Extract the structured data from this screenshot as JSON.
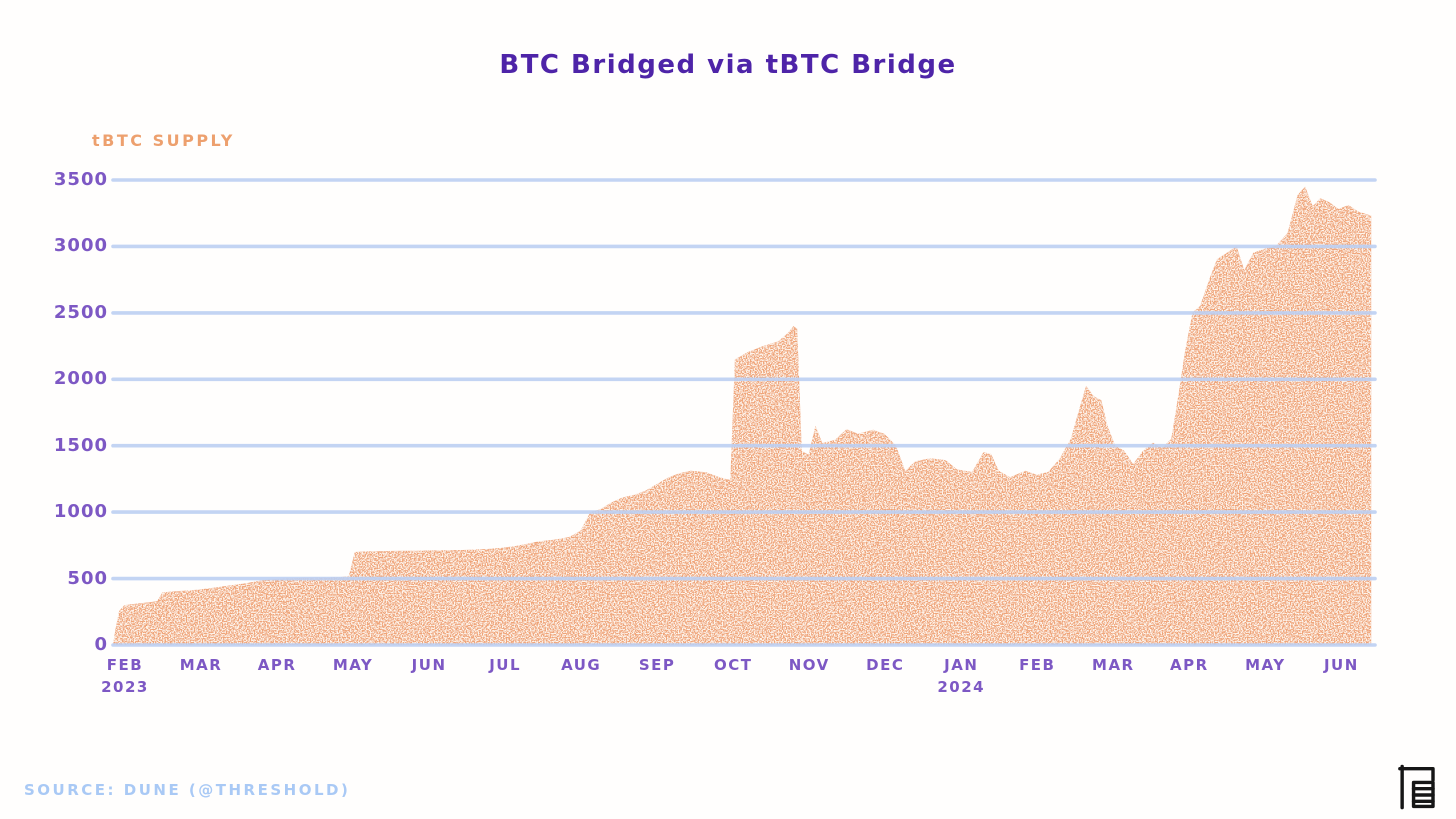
{
  "page": {
    "source": "SOURCE: DUNE (@THRESHOLD)"
  },
  "chart_data": {
    "type": "area",
    "title": "BTC Bridged via tBTC Bridge",
    "ylabel": "tBTC SUPPLY",
    "xlabel": "",
    "series_name": "tBTC Supply",
    "ylim": [
      0,
      3500
    ],
    "yticks": [
      0,
      500,
      1000,
      1500,
      2000,
      2500,
      3000,
      3500
    ],
    "x_range": [
      0,
      16.6
    ],
    "grid": "horizontal",
    "legend": "none",
    "x_ticks": [
      {
        "pos": 0,
        "label": "FEB",
        "sub": "2023"
      },
      {
        "pos": 1,
        "label": "MAR"
      },
      {
        "pos": 2,
        "label": "APR"
      },
      {
        "pos": 3,
        "label": "MAY"
      },
      {
        "pos": 4,
        "label": "JUN"
      },
      {
        "pos": 5,
        "label": "JUL"
      },
      {
        "pos": 6,
        "label": "AUG"
      },
      {
        "pos": 7,
        "label": "SEP"
      },
      {
        "pos": 8,
        "label": "OCT"
      },
      {
        "pos": 9,
        "label": "NOV"
      },
      {
        "pos": 10,
        "label": "DEC"
      },
      {
        "pos": 11,
        "label": "JAN",
        "sub": "2024"
      },
      {
        "pos": 12,
        "label": "FEB"
      },
      {
        "pos": 13,
        "label": "MAR"
      },
      {
        "pos": 14,
        "label": "APR"
      },
      {
        "pos": 15,
        "label": "MAY"
      },
      {
        "pos": 16,
        "label": "JUN"
      }
    ],
    "x": [
      0.0,
      0.03,
      0.08,
      0.15,
      0.3,
      0.45,
      0.58,
      0.65,
      0.8,
      1.0,
      1.25,
      1.5,
      1.75,
      2.0,
      2.2,
      2.5,
      2.8,
      3.0,
      3.1,
      3.18,
      3.4,
      3.7,
      4.0,
      4.3,
      4.6,
      4.9,
      5.1,
      5.3,
      5.45,
      5.6,
      5.8,
      6.0,
      6.15,
      6.28,
      6.4,
      6.55,
      6.7,
      6.85,
      7.0,
      7.15,
      7.3,
      7.45,
      7.6,
      7.8,
      7.95,
      8.05,
      8.12,
      8.18,
      8.35,
      8.55,
      8.75,
      8.88,
      8.95,
      9.0,
      9.06,
      9.15,
      9.24,
      9.33,
      9.5,
      9.65,
      9.8,
      10.0,
      10.15,
      10.3,
      10.42,
      10.55,
      10.75,
      10.95,
      11.1,
      11.3,
      11.45,
      11.55,
      11.65,
      11.8,
      12.0,
      12.15,
      12.3,
      12.45,
      12.6,
      12.7,
      12.8,
      12.9,
      13.0,
      13.08,
      13.18,
      13.3,
      13.42,
      13.55,
      13.68,
      13.8,
      13.92,
      14.02,
      14.1,
      14.2,
      14.3,
      14.42,
      14.52,
      14.65,
      14.78,
      14.88,
      15.0,
      15.15,
      15.3,
      15.45,
      15.58,
      15.68,
      15.78,
      15.88,
      16.0,
      16.12,
      16.25,
      16.38,
      16.55
    ],
    "values": [
      0,
      110,
      255,
      300,
      310,
      320,
      330,
      395,
      405,
      410,
      425,
      445,
      465,
      490,
      500,
      505,
      508,
      512,
      516,
      700,
      705,
      708,
      710,
      712,
      715,
      722,
      730,
      745,
      762,
      780,
      792,
      812,
      860,
      1000,
      1020,
      1070,
      1110,
      1130,
      1160,
      1210,
      1260,
      1292,
      1312,
      1300,
      1268,
      1252,
      1242,
      2150,
      2205,
      2250,
      2285,
      2350,
      2400,
      2380,
      1460,
      1432,
      1650,
      1520,
      1545,
      1625,
      1590,
      1620,
      1588,
      1500,
      1310,
      1382,
      1405,
      1392,
      1322,
      1302,
      1452,
      1438,
      1312,
      1262,
      1312,
      1282,
      1302,
      1400,
      1552,
      1755,
      1950,
      1872,
      1842,
      1652,
      1502,
      1462,
      1362,
      1462,
      1522,
      1482,
      1552,
      1905,
      2205,
      2502,
      2552,
      2752,
      2902,
      2952,
      3002,
      2822,
      2952,
      2982,
      3005,
      3102,
      3385,
      3450,
      3302,
      3362,
      3332,
      3282,
      3312,
      3262,
      3232
    ],
    "colors": {
      "area": "#efa478",
      "grid": "#bdd0f3",
      "axis_text": "#7d58c4",
      "title": "#4e24a8",
      "ylabel": "#eda06e",
      "source": "#a9c9f5"
    }
  }
}
